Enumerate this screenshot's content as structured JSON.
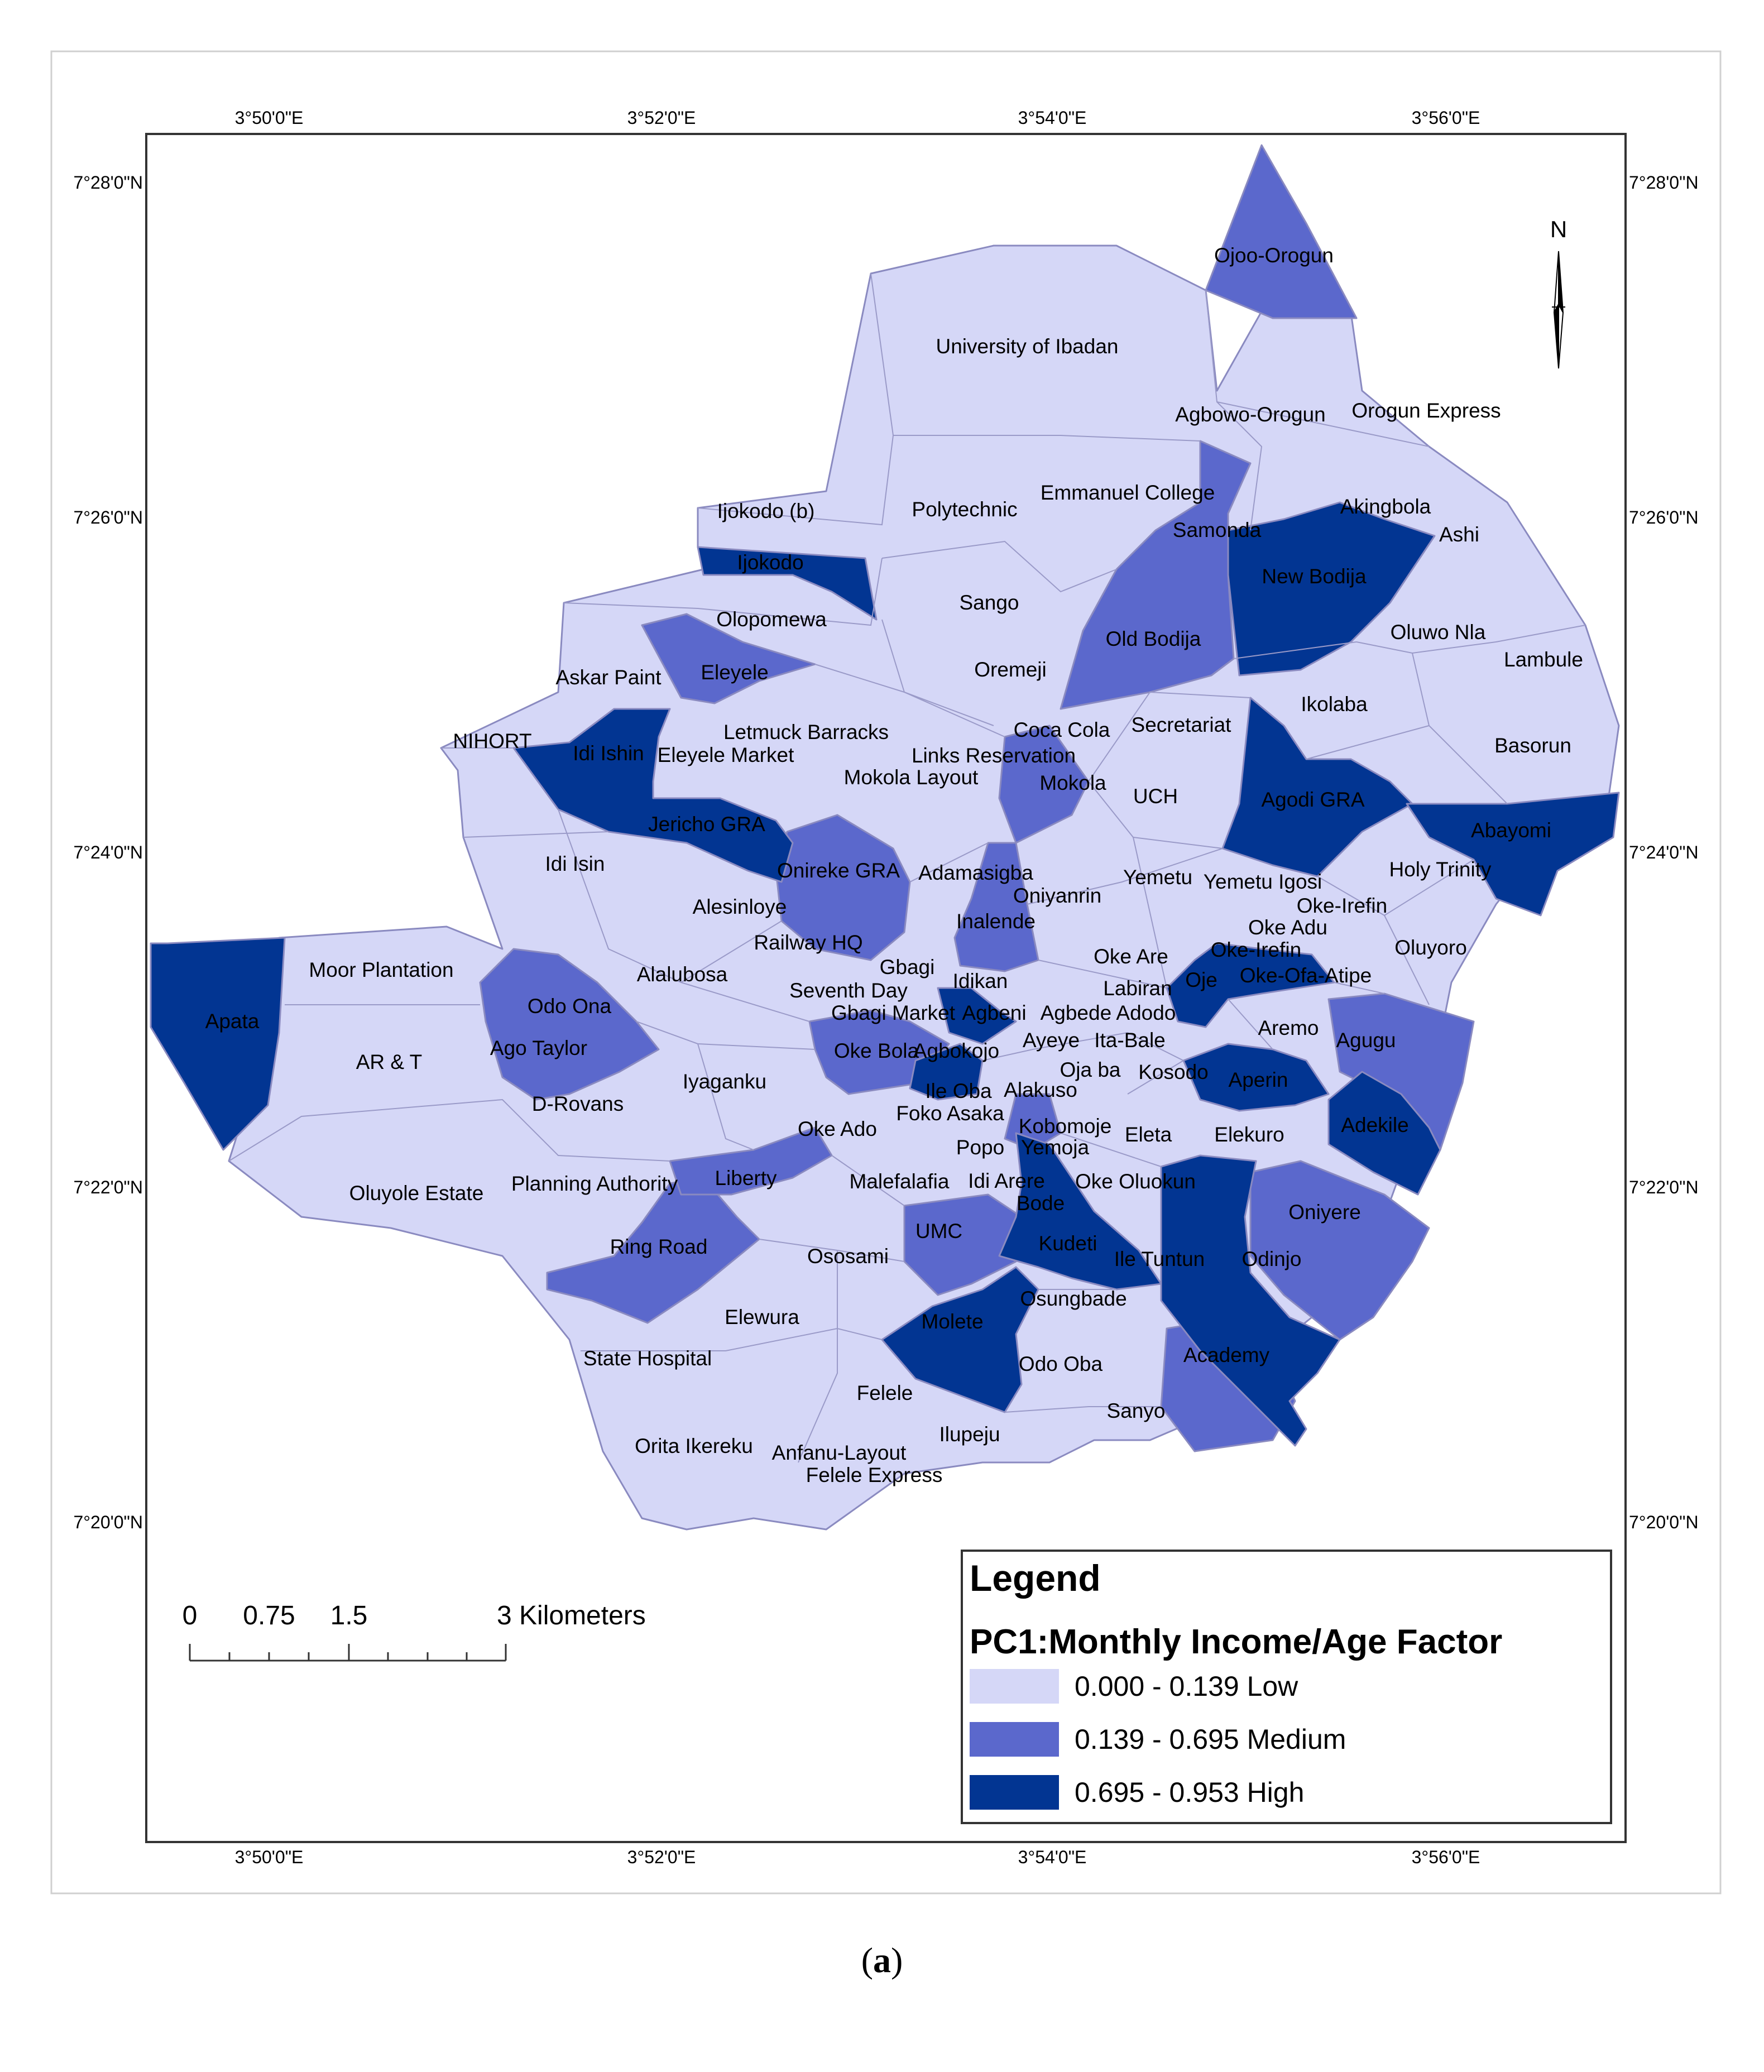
{
  "axes": {
    "longitude_labels": [
      "3°50'0\"E",
      "3°52'0\"E",
      "3°54'0\"E",
      "3°56'0\"E"
    ],
    "latitude_labels": [
      "7°28'0\"N",
      "7°26'0\"N",
      "7°24'0\"N",
      "7°22'0\"N",
      "7°20'0\"N"
    ]
  },
  "north_arrow": {
    "label": "N",
    "icon": "north-arrow-icon"
  },
  "scale_bar": {
    "labels": [
      "0",
      "0.75",
      "1.5",
      "3 Kilometers"
    ]
  },
  "legend": {
    "title": "Legend",
    "subtitle": "PC1:Monthly Income/Age Factor",
    "classes": [
      {
        "label": "0.000 - 0.139 Low",
        "color": "#d5d7f7"
      },
      {
        "label": "0.139 - 0.695 Medium",
        "color": "#5b68cc"
      },
      {
        "label": "0.695 - 0.953 High",
        "color": "#023592"
      }
    ]
  },
  "places": [
    "Ojoo-Orogun",
    "University of Ibadan",
    "Agbowo-Orogun",
    "Orogun Express",
    "Emmanuel College",
    "Polytechnic",
    "Ijokodo (b)",
    "Samonda",
    "Akingbola",
    "Ashi",
    "Ijokodo",
    "New Bodija",
    "Sango",
    "Olopomewa",
    "Old Bodija",
    "Oluwo Nla",
    "Lambule",
    "Eleyele",
    "Askar Paint",
    "Oremeji",
    "Ikolaba",
    "Letmuck Barracks",
    "Coca Cola",
    "Secretariat",
    "NIHORT",
    "Idi Ishin",
    "Eleyele Market",
    "Links Reservation",
    "Basorun",
    "Mokola Layout",
    "Mokola",
    "UCH",
    "Agodi GRA",
    "Jericho GRA",
    "Abayomi",
    "Idi Isin",
    "Onireke GRA",
    "Adamasigba",
    "Yemetu",
    "Yemetu Igosi",
    "Holy Trinity",
    "Oniyanrin",
    "Oke-Irefin",
    "Alesinloye",
    "Inalende",
    "Oke Adu",
    "Railway HQ",
    "Oke Are",
    "Oke-Irefin",
    "Oluyoro",
    "Moor Plantation",
    "Alalubosa",
    "Gbagi",
    "Idikan",
    "Oje",
    "Oke-Ofa-Atipe",
    "Seventh Day",
    "Labiran",
    "Odo Ona",
    "Gbagi Market",
    "Agbeni",
    "Agbede Adodo",
    "Apata",
    "Aremo",
    "Ago Taylor",
    "Ayeye",
    "Ita-Bale",
    "Agugu",
    "AR & T",
    "Oke Bola",
    "Agbokojo",
    "Oja ba",
    "Kosodo",
    "Iyaganku",
    "Aperin",
    "Ile Oba",
    "Alakuso",
    "D-Rovans",
    "Foko Asaka",
    "Adekile",
    "Oke Ado",
    "Kobomoje",
    "Eleta",
    "Elekuro",
    "Popo",
    "Yemoja",
    "Liberty",
    "Malefalafia",
    "Idi Arere",
    "Oke Oluokun",
    "Oluyole Estate",
    "Planning Authority",
    "Bode",
    "Oniyere",
    "UMC",
    "Kudeti",
    "Ring Road",
    "Ososami",
    "Ile Tuntun",
    "Odinjo",
    "Osungbade",
    "Elewura",
    "Molete",
    "Academy",
    "State Hospital",
    "Odo Oba",
    "Felele",
    "Sanyo",
    "Ilupeju",
    "Orita Ikereku",
    "Anfanu-Layout",
    "Felele Express"
  ],
  "caption": {
    "open": "(",
    "letter": "a",
    "close": ")"
  }
}
